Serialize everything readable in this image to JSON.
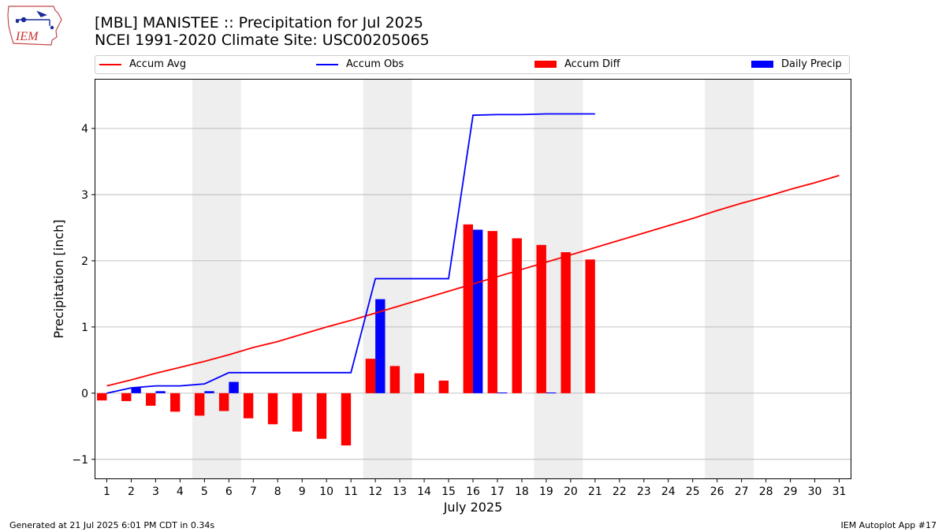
{
  "header": {
    "title_line1": "[MBL] MANISTEE :: Precipitation for Jul 2025",
    "title_line2": "NCEI 1991-2020 Climate Site: USC00205065",
    "logo_text": "IEM"
  },
  "legend": {
    "accum_avg": "Accum Avg",
    "accum_obs": "Accum Obs",
    "accum_diff": "Accum Diff",
    "daily_precip": "Daily Precip"
  },
  "footer": {
    "generated": "Generated at 21 Jul 2025 6:01 PM CDT in 0.34s",
    "app": "IEM Autoplot App #17"
  },
  "colors": {
    "avg": "#ff0000",
    "obs": "#0000ff",
    "diff": "#ff0000",
    "daily": "#0000ff",
    "weekend": "#eeeeee",
    "grid": "#b0b0b0"
  },
  "chart_data": {
    "type": "bar",
    "title": "[MBL] MANISTEE :: Precipitation for Jul 2025",
    "xlabel": "July 2025",
    "ylabel": "Precipitation [inch]",
    "xlim": [
      0.5,
      31.5
    ],
    "ylim": [
      -1.3,
      4.75
    ],
    "yticks": [
      -1,
      0,
      1,
      2,
      3,
      4
    ],
    "ytick_labels": [
      "−1",
      "0",
      "1",
      "2",
      "3",
      "4"
    ],
    "days": [
      1,
      2,
      3,
      4,
      5,
      6,
      7,
      8,
      9,
      10,
      11,
      12,
      13,
      14,
      15,
      16,
      17,
      18,
      19,
      20,
      21,
      22,
      23,
      24,
      25,
      26,
      27,
      28,
      29,
      30,
      31
    ],
    "weekend_shading": [
      [
        4.5,
        6.5
      ],
      [
        11.5,
        13.5
      ],
      [
        18.5,
        20.5
      ],
      [
        25.5,
        27.5
      ]
    ],
    "series": [
      {
        "name": "Accum Avg",
        "kind": "line",
        "values": [
          0.11,
          0.2,
          0.3,
          0.39,
          0.48,
          0.58,
          0.69,
          0.78,
          0.89,
          1.0,
          1.1,
          1.21,
          1.32,
          1.43,
          1.54,
          1.65,
          1.76,
          1.87,
          1.98,
          2.09,
          2.2,
          2.31,
          2.42,
          2.53,
          2.64,
          2.76,
          2.87,
          2.97,
          3.08,
          3.18,
          3.29
        ]
      },
      {
        "name": "Accum Obs",
        "kind": "line",
        "values": [
          0.0,
          0.08,
          0.11,
          0.11,
          0.14,
          0.31,
          0.31,
          0.31,
          0.31,
          0.31,
          0.31,
          1.73,
          1.73,
          1.73,
          1.73,
          4.2,
          4.21,
          4.21,
          4.22,
          4.22,
          4.22
        ]
      },
      {
        "name": "Accum Diff",
        "kind": "bar",
        "values": [
          -0.11,
          -0.12,
          -0.19,
          -0.28,
          -0.34,
          -0.27,
          -0.38,
          -0.47,
          -0.58,
          -0.69,
          -0.79,
          0.52,
          0.41,
          0.3,
          0.19,
          2.55,
          2.45,
          2.34,
          2.24,
          2.13,
          2.02
        ]
      },
      {
        "name": "Daily Precip",
        "kind": "bar",
        "values": [
          0.0,
          0.08,
          0.03,
          0.0,
          0.03,
          0.17,
          0.0,
          0.0,
          0.0,
          0.0,
          0.0,
          1.42,
          0.0,
          0.0,
          0.0,
          2.47,
          0.01,
          0.0,
          0.01,
          0.0,
          0.0
        ]
      }
    ]
  }
}
